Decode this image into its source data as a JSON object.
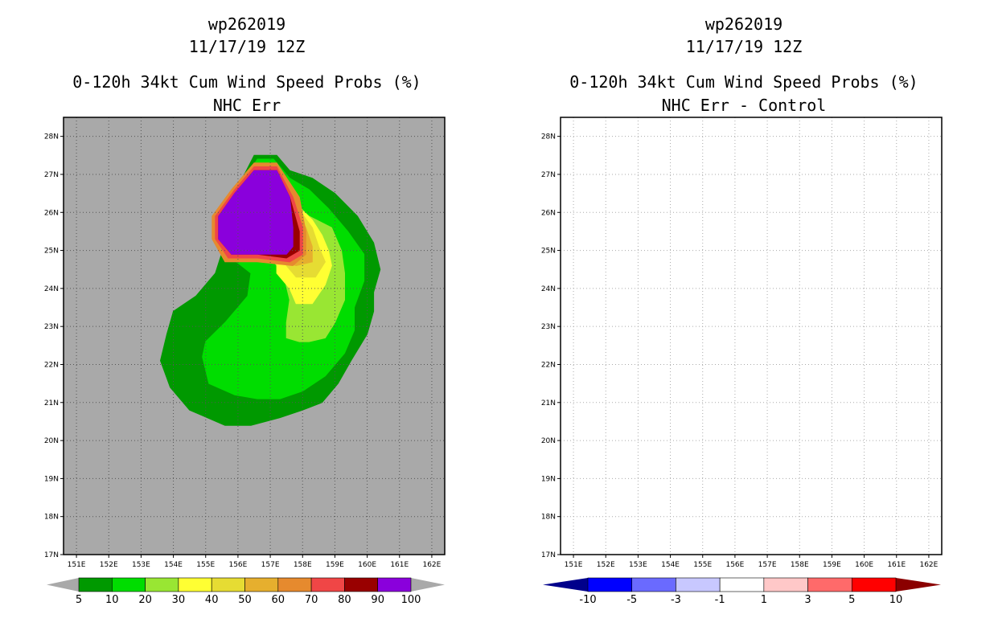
{
  "left_panel": {
    "title1": "wp262019",
    "title2": "11/17/19 12Z",
    "title3": "0-120h 34kt Cum Wind Speed Probs (%)",
    "title4": "NHC Err"
  },
  "right_panel": {
    "title1": "wp262019",
    "title2": "11/17/19 12Z",
    "title3": "0-120h 34kt Cum Wind Speed Probs (%)",
    "title4": "NHC Err - Control"
  },
  "chart_data": [
    {
      "type": "heatmap",
      "title": "0-120h 34kt Cum Wind Speed Probs (%) NHC Err",
      "xlim": [
        150.6,
        162.4
      ],
      "ylim": [
        17,
        28.5
      ],
      "x_ticks": [
        "151E",
        "152E",
        "153E",
        "154E",
        "155E",
        "156E",
        "157E",
        "158E",
        "159E",
        "160E",
        "161E",
        "162E"
      ],
      "y_ticks": [
        "17N",
        "18N",
        "19N",
        "20N",
        "21N",
        "22N",
        "23N",
        "24N",
        "25N",
        "26N",
        "27N",
        "28N"
      ],
      "background_color": "#a9a9a9",
      "contour_levels": [
        {
          "min": 5,
          "color": "#009900",
          "polygon": [
            [
              156.5,
              27.5
            ],
            [
              157.2,
              27.5
            ],
            [
              157.6,
              27.1
            ],
            [
              158.3,
              26.9
            ],
            [
              159.0,
              26.5
            ],
            [
              159.7,
              25.9
            ],
            [
              160.2,
              25.2
            ],
            [
              160.4,
              24.5
            ],
            [
              160.2,
              23.9
            ],
            [
              160.2,
              23.4
            ],
            [
              160.0,
              22.8
            ],
            [
              159.5,
              22.1
            ],
            [
              159.1,
              21.5
            ],
            [
              158.6,
              21.0
            ],
            [
              158.0,
              20.8
            ],
            [
              157.3,
              20.6
            ],
            [
              156.4,
              20.4
            ],
            [
              155.6,
              20.4
            ],
            [
              154.5,
              20.8
            ],
            [
              153.9,
              21.4
            ],
            [
              153.6,
              22.1
            ],
            [
              153.8,
              22.8
            ],
            [
              154.0,
              23.4
            ],
            [
              154.7,
              23.8
            ],
            [
              155.3,
              24.4
            ],
            [
              155.6,
              25.2
            ],
            [
              155.4,
              25.9
            ],
            [
              155.8,
              26.4
            ],
            [
              156.2,
              27.0
            ]
          ]
        },
        {
          "min": 10,
          "color": "#00dd00",
          "polygon": [
            [
              156.6,
              27.4
            ],
            [
              157.1,
              27.4
            ],
            [
              157.6,
              26.9
            ],
            [
              158.2,
              26.6
            ],
            [
              158.8,
              26.1
            ],
            [
              159.4,
              25.5
            ],
            [
              159.9,
              24.9
            ],
            [
              159.9,
              24.2
            ],
            [
              159.6,
              23.5
            ],
            [
              159.6,
              22.9
            ],
            [
              159.3,
              22.3
            ],
            [
              158.7,
              21.7
            ],
            [
              158.0,
              21.3
            ],
            [
              157.3,
              21.1
            ],
            [
              156.6,
              21.1
            ],
            [
              155.9,
              21.2
            ],
            [
              155.1,
              21.5
            ],
            [
              154.9,
              22.2
            ],
            [
              155.0,
              22.6
            ],
            [
              155.6,
              23.1
            ],
            [
              156.3,
              23.8
            ],
            [
              156.4,
              24.4
            ],
            [
              155.8,
              24.8
            ],
            [
              155.4,
              25.4
            ],
            [
              155.5,
              26.0
            ],
            [
              155.9,
              26.5
            ],
            [
              156.3,
              27.0
            ]
          ]
        },
        {
          "min": 20,
          "color": "#99e633",
          "polygon": [
            [
              157.7,
              26.3
            ],
            [
              158.2,
              25.9
            ],
            [
              158.9,
              25.6
            ],
            [
              159.2,
              25.0
            ],
            [
              159.3,
              24.4
            ],
            [
              159.3,
              23.7
            ],
            [
              159.0,
              23.1
            ],
            [
              158.7,
              22.7
            ],
            [
              158.2,
              22.6
            ],
            [
              157.9,
              22.6
            ],
            [
              157.5,
              22.7
            ],
            [
              157.5,
              23.1
            ],
            [
              157.6,
              23.7
            ],
            [
              157.4,
              24.4
            ],
            [
              157.0,
              24.8
            ],
            [
              157.3,
              25.4
            ]
          ]
        },
        {
          "min": 30,
          "color": "#ffff33",
          "polygon": [
            [
              157.7,
              26.3
            ],
            [
              158.3,
              25.8
            ],
            [
              158.6,
              25.4
            ],
            [
              158.8,
              25.0
            ],
            [
              158.9,
              24.6
            ],
            [
              158.7,
              24.1
            ],
            [
              158.3,
              23.6
            ],
            [
              157.8,
              23.6
            ],
            [
              157.6,
              24.0
            ],
            [
              157.2,
              24.4
            ],
            [
              157.2,
              24.9
            ],
            [
              157.4,
              25.5
            ]
          ]
        },
        {
          "min": 40,
          "color": "#e6dc33",
          "polygon": [
            [
              157.7,
              26.3
            ],
            [
              158.3,
              25.6
            ],
            [
              158.5,
              25.1
            ],
            [
              158.7,
              24.7
            ],
            [
              158.4,
              24.3
            ],
            [
              157.8,
              24.3
            ],
            [
              157.5,
              24.6
            ],
            [
              157.4,
              25.2
            ]
          ]
        },
        {
          "min": 50,
          "color": "#e6af2e",
          "polygon": [
            [
              157.6,
              26.4
            ],
            [
              158.1,
              25.6
            ],
            [
              158.3,
              25.1
            ],
            [
              158.3,
              24.7
            ],
            [
              157.8,
              24.6
            ],
            [
              157.4,
              24.7
            ],
            [
              157.4,
              25.3
            ]
          ]
        },
        {
          "min": 60,
          "color": "#e68a2e",
          "polygon": [
            [
              156.5,
              27.3
            ],
            [
              157.2,
              27.3
            ],
            [
              157.9,
              26.4
            ],
            [
              158.1,
              25.5
            ],
            [
              158.1,
              24.9
            ],
            [
              157.7,
              24.6
            ],
            [
              156.6,
              24.7
            ],
            [
              155.6,
              24.7
            ],
            [
              155.2,
              25.3
            ],
            [
              155.2,
              25.9
            ],
            [
              155.8,
              26.6
            ]
          ]
        },
        {
          "min": 70,
          "color": "#f04646",
          "polygon": [
            [
              156.5,
              27.2
            ],
            [
              157.2,
              27.2
            ],
            [
              157.7,
              26.4
            ],
            [
              158.0,
              25.6
            ],
            [
              158.0,
              24.9
            ],
            [
              157.6,
              24.7
            ],
            [
              156.6,
              24.8
            ],
            [
              155.7,
              24.8
            ],
            [
              155.3,
              25.3
            ],
            [
              155.3,
              25.9
            ],
            [
              155.9,
              26.6
            ]
          ]
        },
        {
          "min": 80,
          "color": "#990000",
          "polygon": [
            [
              156.5,
              27.1
            ],
            [
              157.2,
              27.1
            ],
            [
              157.6,
              26.4
            ],
            [
              157.9,
              25.5
            ],
            [
              157.9,
              25.0
            ],
            [
              157.5,
              24.8
            ],
            [
              156.6,
              24.9
            ],
            [
              155.8,
              24.9
            ],
            [
              155.4,
              25.3
            ],
            [
              155.4,
              25.9
            ],
            [
              155.9,
              26.5
            ]
          ]
        },
        {
          "min": 90,
          "color": "#8a00dc",
          "polygon": [
            [
              156.5,
              27.1
            ],
            [
              157.2,
              27.1
            ],
            [
              157.6,
              26.4
            ],
            [
              157.7,
              25.6
            ],
            [
              157.7,
              25.1
            ],
            [
              157.5,
              24.9
            ],
            [
              156.6,
              24.9
            ],
            [
              155.8,
              24.9
            ],
            [
              155.4,
              25.3
            ],
            [
              155.4,
              25.9
            ],
            [
              155.9,
              26.5
            ]
          ]
        }
      ],
      "colorbar": {
        "labels": [
          "5",
          "10",
          "20",
          "30",
          "40",
          "50",
          "60",
          "70",
          "80",
          "90",
          "100"
        ],
        "colors": [
          "#009900",
          "#00dd00",
          "#99e633",
          "#ffff33",
          "#e6dc33",
          "#e6af2e",
          "#e68a2e",
          "#f04646",
          "#990000",
          "#8a00dc"
        ]
      }
    },
    {
      "type": "heatmap",
      "title": "0-120h 34kt Cum Wind Speed Probs (%) NHC Err - Control",
      "xlim": [
        150.6,
        162.4
      ],
      "ylim": [
        17,
        28.5
      ],
      "x_ticks": [
        "151E",
        "152E",
        "153E",
        "154E",
        "155E",
        "156E",
        "157E",
        "158E",
        "159E",
        "160E",
        "161E",
        "162E"
      ],
      "y_ticks": [
        "17N",
        "18N",
        "19N",
        "20N",
        "21N",
        "22N",
        "23N",
        "24N",
        "25N",
        "26N",
        "27N",
        "28N"
      ],
      "background_color": "#ffffff",
      "contour_levels": [],
      "colorbar": {
        "labels": [
          "-10",
          "-5",
          "-3",
          "-1",
          "1",
          "3",
          "5",
          "10"
        ],
        "colors": [
          "#00008b",
          "#0000ff",
          "#6a6aff",
          "#c8c8ff",
          "#ffffff",
          "#ffc8c8",
          "#ff6a6a",
          "#ff0000",
          "#8b0000"
        ]
      }
    }
  ]
}
